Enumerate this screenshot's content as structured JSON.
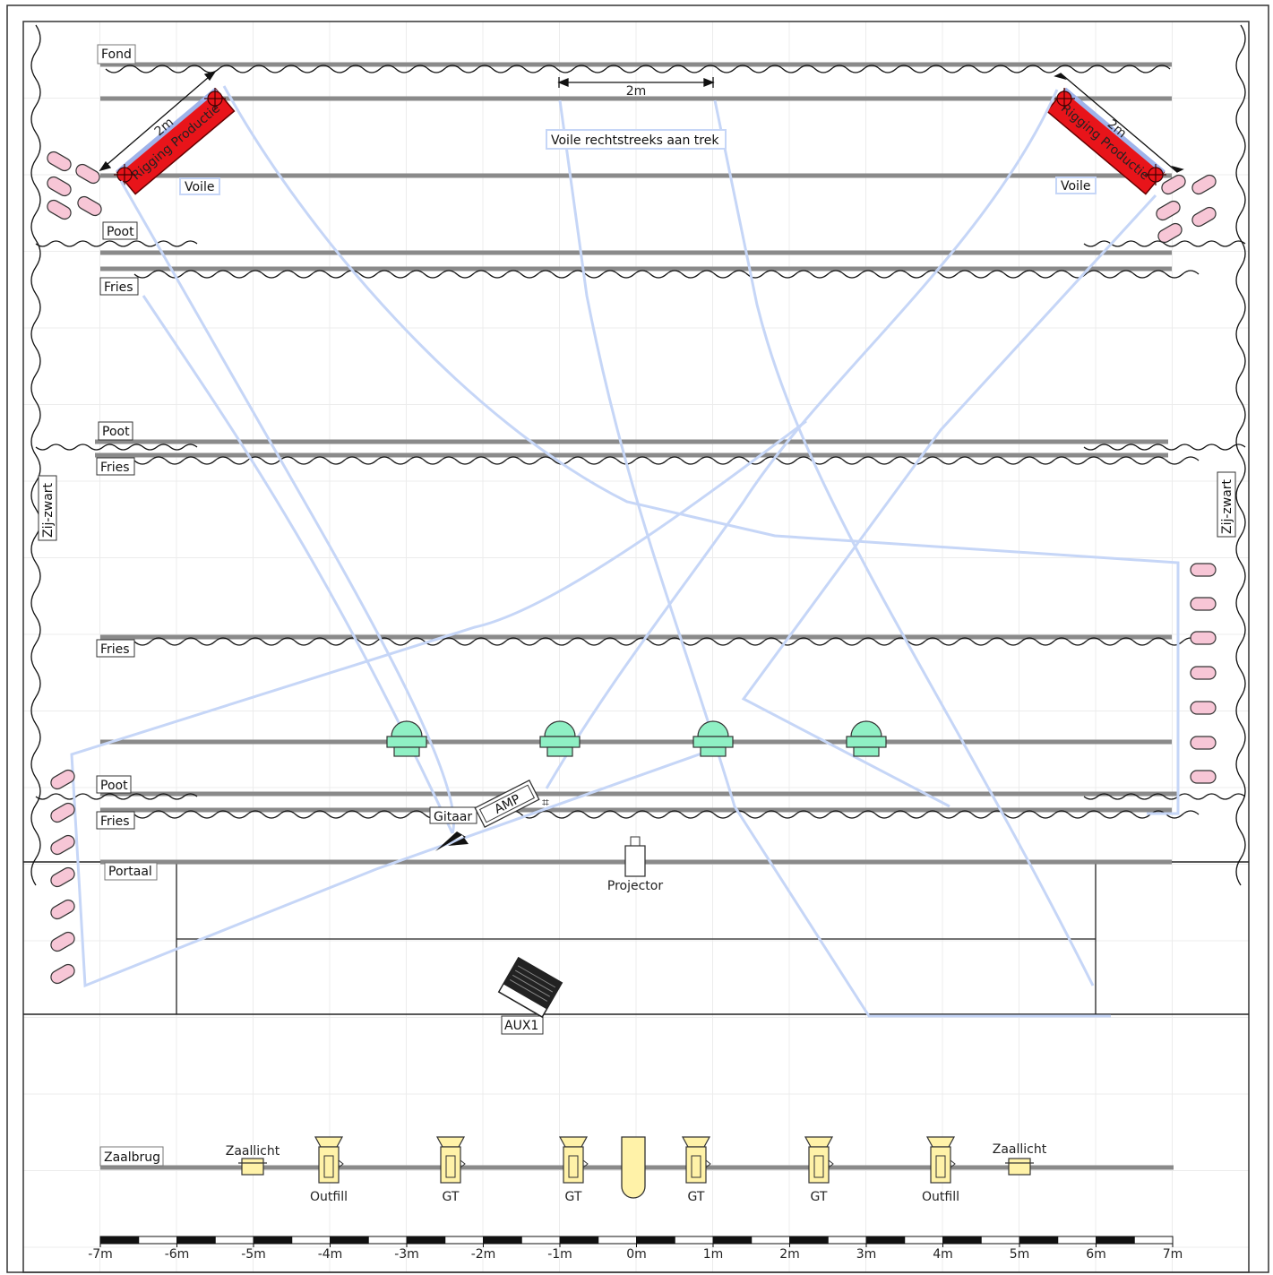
{
  "labels": {
    "fond": "Fond",
    "voile_left": "Voile",
    "voile_right": "Voile",
    "voile_note": "Voile rechtstreeks aan trek",
    "dim_2m_top": "2m",
    "dim_2m_left": "2m",
    "dim_2m_right": "2m",
    "rigging_left": "Rigging Productie",
    "rigging_right": "Rigging Productie",
    "poot_1": "Poot",
    "fries_1": "Fries",
    "poot_2": "Poot",
    "fries_2": "Fries",
    "zij_left": "Zij-zwart",
    "zij_right": "Zij-zwart",
    "fries_3": "Fries",
    "poot_3": "Poot",
    "fries_4": "Fries",
    "gitaar": "Gitaar",
    "amp": "AMP",
    "portaal": "Portaal",
    "projector": "Projector",
    "aux1": "AUX1",
    "zaalbrug": "Zaalbrug",
    "zaallicht_left": "Zaallicht",
    "zaallicht_right": "Zaallicht",
    "outfill_left": "Outfill",
    "gt_1": "GT",
    "gt_2": "GT",
    "gt_3": "GT",
    "gt_4": "GT",
    "outfill_right": "Outfill"
  },
  "scale_ticks": [
    "-7m",
    "-6m",
    "-5m",
    "-4m",
    "-3m",
    "-2m",
    "-1m",
    "0m",
    "1m",
    "2m",
    "3m",
    "4m",
    "5m",
    "6m",
    "7m"
  ],
  "colors": {
    "bar": "#8a8a8a",
    "path": "#c6d6f7",
    "rigging": "#e8141a",
    "pink": "#f7c6d6",
    "green": "#8ff0c4",
    "yellow": "#fff2a8",
    "grid": "#ececec"
  }
}
